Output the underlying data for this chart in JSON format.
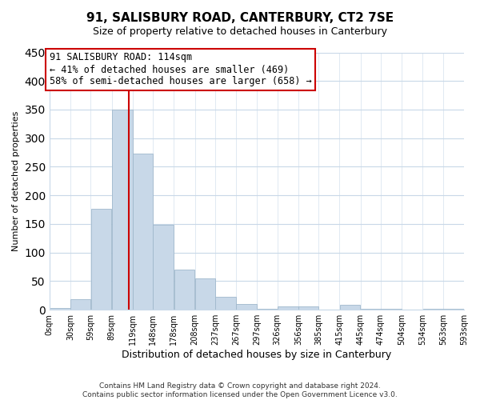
{
  "title": "91, SALISBURY ROAD, CANTERBURY, CT2 7SE",
  "subtitle": "Size of property relative to detached houses in Canterbury",
  "xlabel": "Distribution of detached houses by size in Canterbury",
  "ylabel": "Number of detached properties",
  "bin_edges": [
    0,
    30,
    59,
    89,
    119,
    148,
    178,
    208,
    237,
    267,
    297,
    326,
    356,
    385,
    415,
    445,
    474,
    504,
    534,
    563,
    593
  ],
  "counts": [
    3,
    18,
    176,
    350,
    273,
    148,
    70,
    55,
    22,
    10,
    2,
    6,
    6,
    0,
    8,
    1,
    2,
    0,
    1,
    1
  ],
  "bar_color": "#c8d8e8",
  "bar_edge_color": "#a0b8cc",
  "property_size": 114,
  "vline_color": "#cc0000",
  "annotation_line1": "91 SALISBURY ROAD: 114sqm",
  "annotation_line2": "← 41% of detached houses are smaller (469)",
  "annotation_line3": "58% of semi-detached houses are larger (658) →",
  "annotation_box_edge": "#cc0000",
  "footer_text": "Contains HM Land Registry data © Crown copyright and database right 2024.\nContains public sector information licensed under the Open Government Licence v3.0.",
  "tick_labels": [
    "0sqm",
    "30sqm",
    "59sqm",
    "89sqm",
    "119sqm",
    "148sqm",
    "178sqm",
    "208sqm",
    "237sqm",
    "267sqm",
    "297sqm",
    "326sqm",
    "356sqm",
    "385sqm",
    "415sqm",
    "445sqm",
    "474sqm",
    "504sqm",
    "534sqm",
    "563sqm",
    "593sqm"
  ],
  "ylim": [
    0,
    450
  ],
  "background_color": "#ffffff",
  "grid_color": "#c8d8e8",
  "title_fontsize": 11,
  "subtitle_fontsize": 9,
  "ylabel_fontsize": 8,
  "xlabel_fontsize": 9,
  "tick_fontsize": 7,
  "annotation_fontsize": 8.5,
  "footer_fontsize": 6.5
}
